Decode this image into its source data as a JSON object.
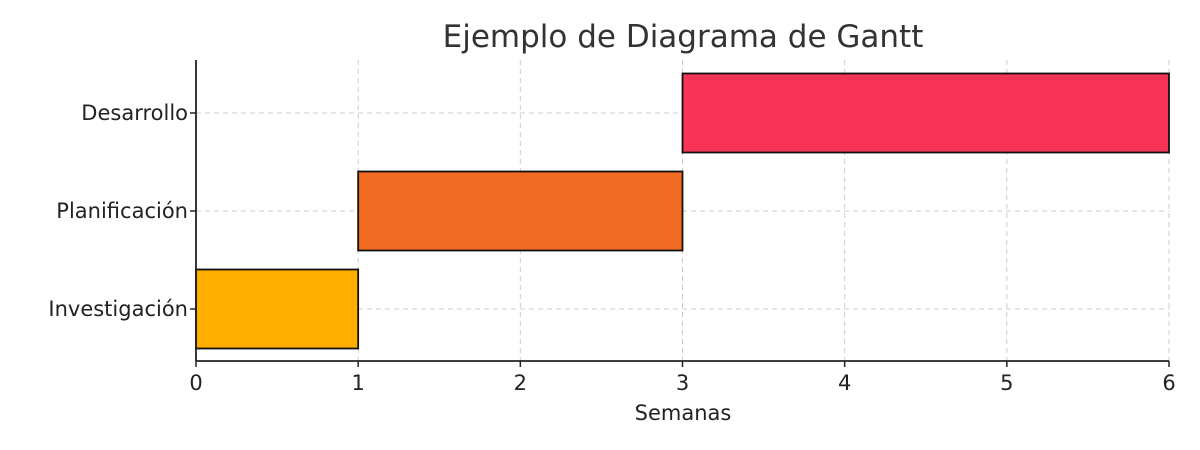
{
  "chart_data": {
    "type": "bar",
    "orientation": "horizontal-gantt",
    "title": "Ejemplo de Diagrama de Gantt",
    "xlabel": "Semanas",
    "ylabel": "",
    "xlim": [
      0,
      6
    ],
    "x_ticks": [
      0,
      1,
      2,
      3,
      4,
      5,
      6
    ],
    "grid": true,
    "tasks": [
      {
        "name": "Investigación",
        "start": 0,
        "end": 1,
        "color": "#FFAE00"
      },
      {
        "name": "Planificación",
        "start": 1,
        "end": 3,
        "color": "#F26B22"
      },
      {
        "name": "Desarrollo",
        "start": 3,
        "end": 6,
        "color": "#F73357"
      }
    ]
  }
}
